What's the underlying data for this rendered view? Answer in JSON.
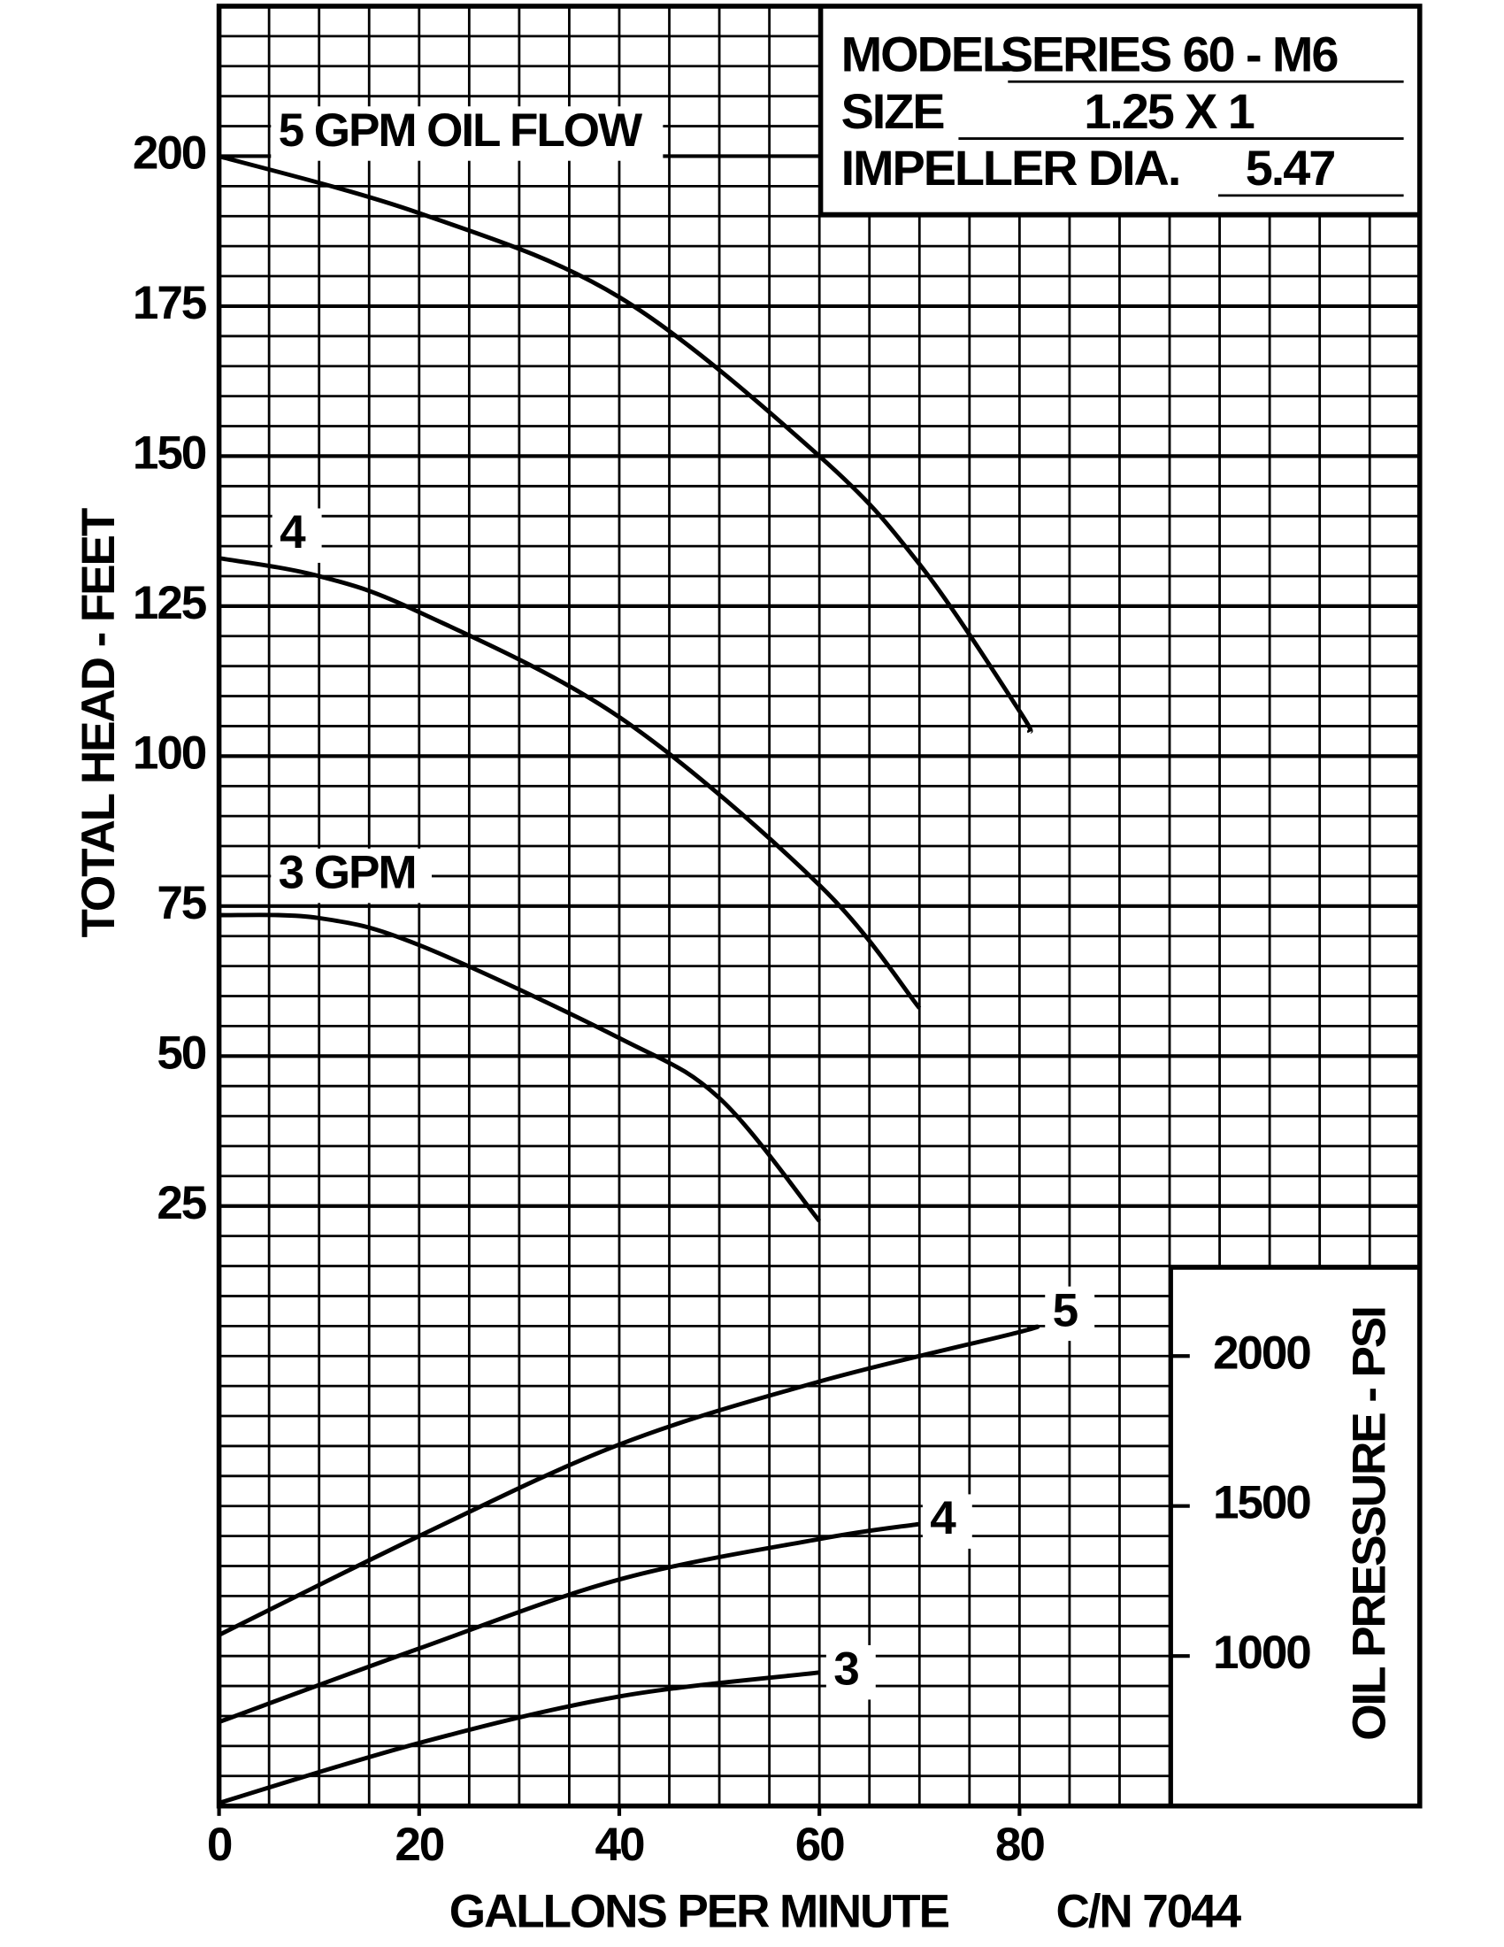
{
  "chart_data": {
    "type": "line",
    "info": [
      {
        "label": "MODEL",
        "value": "SERIES 60 - M6"
      },
      {
        "label": "SIZE",
        "value": "1.25 X 1"
      },
      {
        "label": "IMPELLER DIA.",
        "value": "5.47"
      }
    ],
    "xlabel": "GALLONS PER MINUTE",
    "note": "C/N 7044",
    "ylabel": "TOTAL HEAD - FEET",
    "y2label": "OIL PRESSURE - PSI",
    "xlim": [
      0,
      120
    ],
    "xticks": [
      0,
      20,
      40,
      60,
      80
    ],
    "ylim": [
      -75,
      225
    ],
    "yticks": [
      25,
      50,
      75,
      100,
      125,
      150,
      175,
      200
    ],
    "y2lim": [
      500,
      6500
    ],
    "y2ticks": [
      1000,
      1500,
      2000
    ],
    "grid": true,
    "x_grid_step": 5,
    "y_grid_step": 5,
    "color": "#000000",
    "series": [
      {
        "name": "5 GPM OIL FLOW",
        "color": "#000000",
        "x": [
          0,
          20,
          40,
          60,
          70,
          80,
          81
        ],
        "values": [
          200,
          190.5,
          176.5,
          150,
          132,
          107.5,
          104
        ]
      },
      {
        "name": "4",
        "color": "#000000",
        "x": [
          0,
          10,
          20,
          40,
          60,
          70
        ],
        "values": [
          133,
          130,
          124,
          106.5,
          78.5,
          58
        ]
      },
      {
        "name": "3 GPM",
        "color": "#000000",
        "x": [
          0,
          10,
          20,
          40,
          50,
          60
        ],
        "values": [
          73.5,
          73,
          68.5,
          53,
          43,
          22.5
        ]
      },
      {
        "name": "5",
        "color": "#000000",
        "axis": "y2",
        "x": [
          0,
          20,
          40,
          60,
          80,
          81
        ],
        "values": [
          1070,
          1400,
          1705,
          1915,
          2080,
          2095
        ]
      },
      {
        "name": "4",
        "color": "#000000",
        "axis": "y2",
        "x": [
          0,
          20,
          40,
          60,
          70
        ],
        "values": [
          780,
          1025,
          1255,
          1390,
          1440
        ]
      },
      {
        "name": "3",
        "color": "#000000",
        "axis": "y2",
        "x": [
          0,
          20,
          40,
          60
        ],
        "values": [
          510,
          710,
          865,
          945
        ]
      }
    ]
  }
}
